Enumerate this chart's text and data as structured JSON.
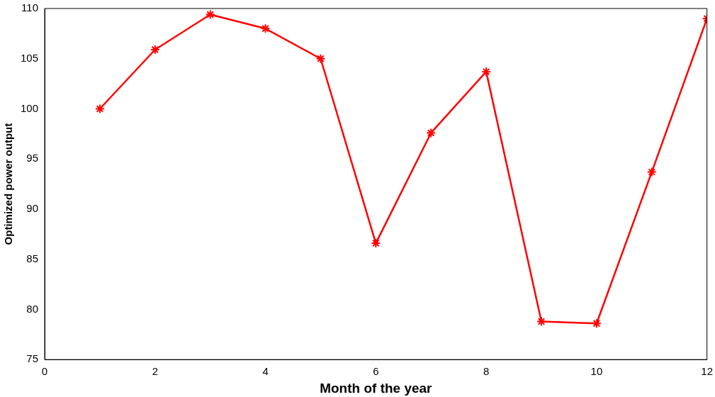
{
  "chart_data": {
    "type": "line",
    "xlabel": "Month of the year",
    "ylabel": "Optimized power output",
    "x": [
      1,
      2,
      3,
      4,
      5,
      6,
      7,
      8,
      9,
      10,
      11,
      12
    ],
    "series": [
      {
        "color": "#ff0000",
        "values": [
          100,
          105.9,
          109.4,
          108,
          105,
          86.6,
          97.6,
          103.7,
          78.8,
          78.6,
          93.7,
          109
        ]
      }
    ],
    "xlim": [
      0,
      12
    ],
    "xticks": [
      0,
      2,
      4,
      6,
      8,
      10,
      12
    ],
    "ylim": [
      75,
      110
    ],
    "yticks": [
      75,
      80,
      85,
      90,
      95,
      100,
      105,
      110
    ],
    "marker": "cross",
    "line_style": "solid",
    "grid": false,
    "legend": false
  }
}
